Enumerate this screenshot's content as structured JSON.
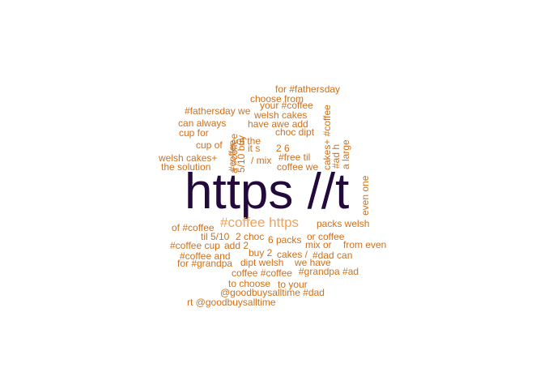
{
  "wordcloud": {
    "words": [
      {
        "text": "for #fathersday"
      },
      {
        "text": "choose from"
      },
      {
        "text": "your #coffee"
      },
      {
        "text": "#fathersday we"
      },
      {
        "text": "welsh cakes"
      },
      {
        "text": "can always"
      },
      {
        "text": "have awe add"
      },
      {
        "text": "cup for"
      },
      {
        "text": "choc dipt"
      },
      {
        "text": "of the"
      },
      {
        "text": "cup of"
      },
      {
        "text": "it s"
      },
      {
        "text": "2 6"
      },
      {
        "text": "welsh cakes+"
      },
      {
        "text": "/ mix"
      },
      {
        "text": "#free til"
      },
      {
        "text": "the solution"
      },
      {
        "text": "coffee we"
      },
      {
        "text": "https //t"
      },
      {
        "text": "#coffee https"
      },
      {
        "text": "of #coffee"
      },
      {
        "text": "packs welsh"
      },
      {
        "text": "til 5/10"
      },
      {
        "text": "2 choc"
      },
      {
        "text": "6 packs"
      },
      {
        "text": "or coffee"
      },
      {
        "text": "#coffee cup"
      },
      {
        "text": "add 2"
      },
      {
        "text": "mix or"
      },
      {
        "text": "from even"
      },
      {
        "text": "buy 2"
      },
      {
        "text": "cakes /"
      },
      {
        "text": "#coffee and"
      },
      {
        "text": "#dad can"
      },
      {
        "text": "for #grandpa"
      },
      {
        "text": "dipt welsh"
      },
      {
        "text": "we have"
      },
      {
        "text": "coffee #coffee"
      },
      {
        "text": "#grandpa #ad"
      },
      {
        "text": "to choose"
      },
      {
        "text": "to your"
      },
      {
        "text": "@goodbuysalltime #dad"
      },
      {
        "text": "rt @goodbuysalltime"
      },
      {
        "text": "#coffee"
      },
      {
        "text": "5/10 buy"
      },
      {
        "text": "a #coffee"
      },
      {
        "text": "cakes+ #coffee"
      },
      {
        "text": "#ad h"
      },
      {
        "text": "a large"
      },
      {
        "text": "even one"
      }
    ]
  },
  "colors": {
    "primary": "#230a3d",
    "secondary": "#f0a359",
    "tertiary": "#d1701a",
    "background": "#ffffff"
  }
}
